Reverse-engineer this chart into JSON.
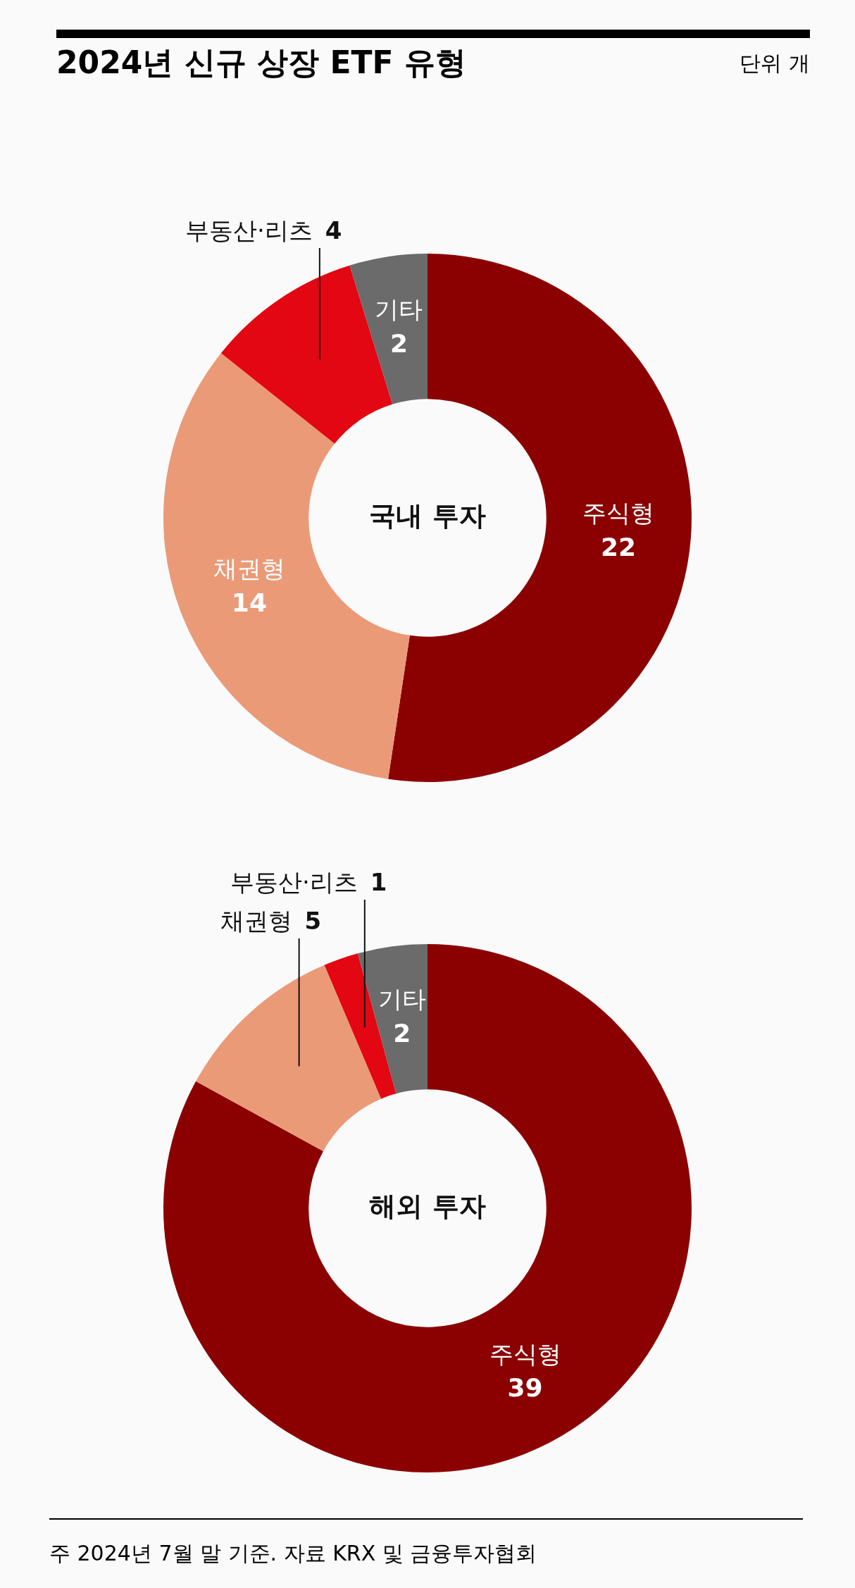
{
  "chart_data": [
    {
      "type": "other",
      "title": "2024년 신규 상장 ETF 유형",
      "annotations": [
        "단위 개"
      ]
    },
    {
      "type": "donut",
      "title": "국내 투자",
      "categories": [
        "주식형",
        "채권형",
        "부동산·리츠",
        "기타"
      ],
      "values": [
        22,
        14,
        4,
        2
      ],
      "colors": [
        "#8b0000",
        "#eb9a78",
        "#e30613",
        "#6b6b6b"
      ],
      "data_labels": true
    },
    {
      "type": "donut",
      "title": "해외 투자",
      "categories": [
        "주식형",
        "채권형",
        "부동산·리츠",
        "기타"
      ],
      "values": [
        39,
        5,
        1,
        2
      ],
      "colors": [
        "#8b0000",
        "#eb9a78",
        "#e30613",
        "#6b6b6b"
      ],
      "data_labels": true
    },
    {
      "type": "other",
      "annotations": [
        "주 2024년 7월 말 기준. 자료 KRX 및 금융투자협회"
      ]
    }
  ]
}
